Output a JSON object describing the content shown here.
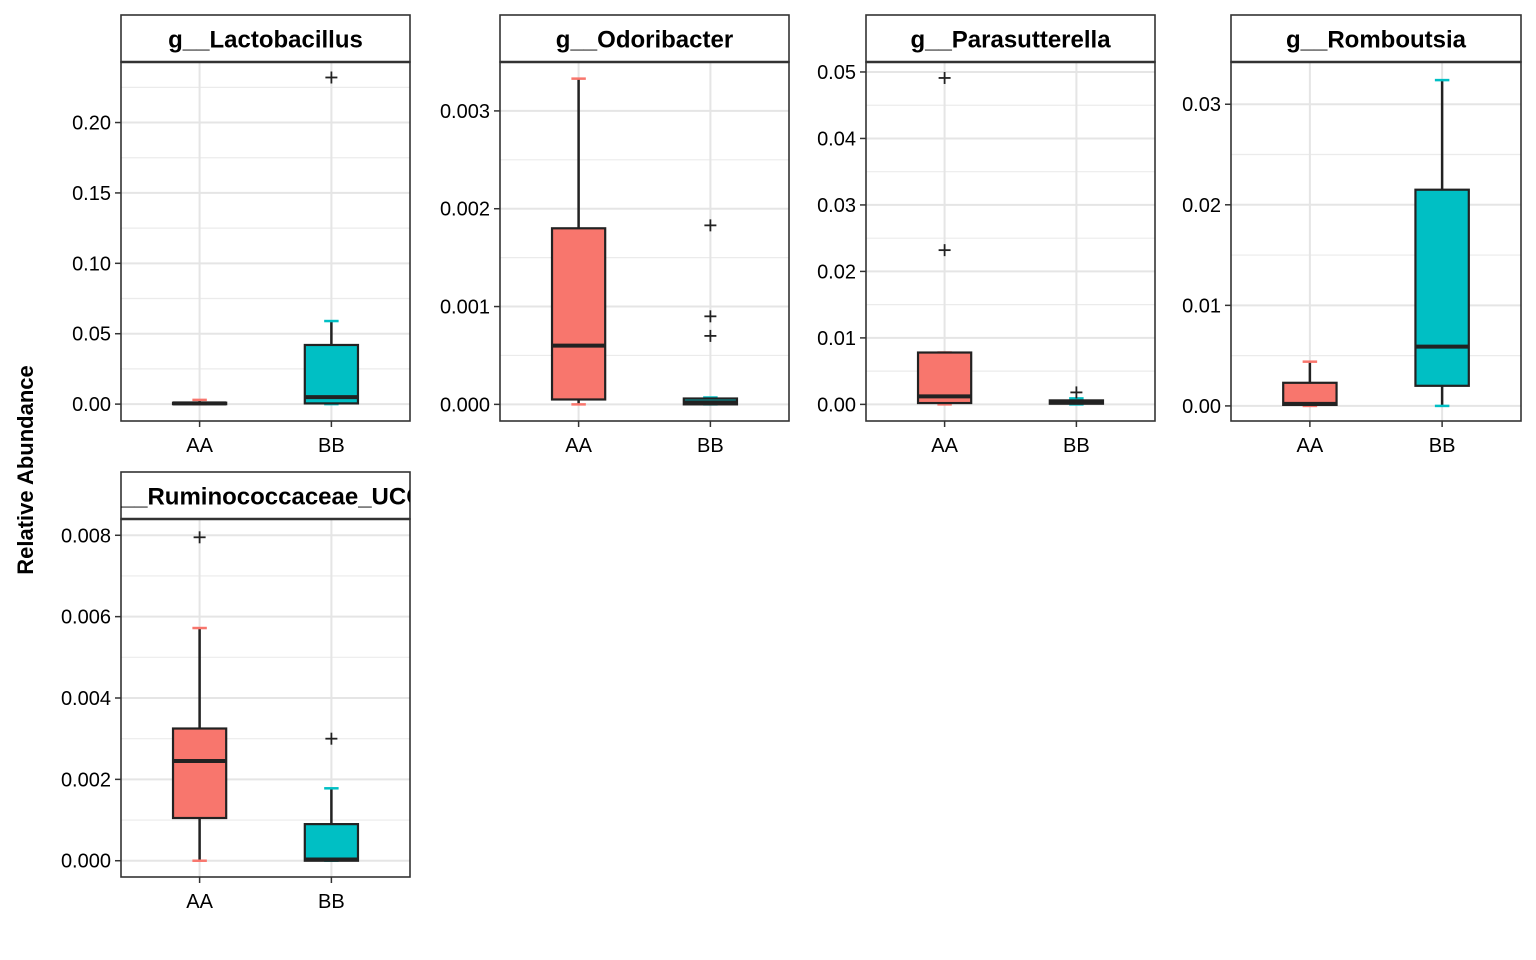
{
  "ylabel": "Relative Abundance",
  "colors": {
    "AA": "#F8766D",
    "BB": "#00BFC4"
  },
  "chart_data": [
    {
      "type": "box",
      "title": "g__Lactobacillus",
      "categories": [
        "AA",
        "BB"
      ],
      "ylim": [
        -0.012,
        0.243
      ],
      "yticks": [
        0.0,
        0.05,
        0.1,
        0.15,
        0.2
      ],
      "ytick_labels": [
        "0.00",
        "0.05",
        "0.10",
        "0.15",
        "0.20"
      ],
      "boxes": [
        {
          "group": "AA",
          "lower_whisker": 0.0,
          "q1": 0.0,
          "median": 0.0005,
          "q3": 0.001,
          "upper_whisker": 0.003,
          "outliers": []
        },
        {
          "group": "BB",
          "lower_whisker": 0.0,
          "q1": 0.0005,
          "median": 0.005,
          "q3": 0.042,
          "upper_whisker": 0.059,
          "outliers": [
            0.232
          ]
        }
      ]
    },
    {
      "type": "box",
      "title": "g__Odoribacter",
      "categories": [
        "AA",
        "BB"
      ],
      "ylim": [
        -0.00017,
        0.0035
      ],
      "yticks": [
        0.0,
        0.001,
        0.002,
        0.003
      ],
      "ytick_labels": [
        "0.000",
        "0.001",
        "0.002",
        "0.003"
      ],
      "boxes": [
        {
          "group": "AA",
          "lower_whisker": 0.0,
          "q1": 5e-05,
          "median": 0.0006,
          "q3": 0.0018,
          "upper_whisker": 0.00333,
          "outliers": []
        },
        {
          "group": "BB",
          "lower_whisker": 0.0,
          "q1": 0.0,
          "median": 2e-05,
          "q3": 6e-05,
          "upper_whisker": 7e-05,
          "outliers": [
            0.00183,
            0.0009,
            0.0007
          ]
        }
      ]
    },
    {
      "type": "box",
      "title": "g__Parasutterella",
      "categories": [
        "AA",
        "BB"
      ],
      "ylim": [
        -0.0025,
        0.0515
      ],
      "yticks": [
        0.0,
        0.01,
        0.02,
        0.03,
        0.04,
        0.05
      ],
      "ytick_labels": [
        "0.00",
        "0.01",
        "0.02",
        "0.03",
        "0.04",
        "0.05"
      ],
      "boxes": [
        {
          "group": "AA",
          "lower_whisker": 0.0,
          "q1": 0.0002,
          "median": 0.0012,
          "q3": 0.0078,
          "upper_whisker": 0.0078,
          "outliers": [
            0.0491,
            0.0232
          ]
        },
        {
          "group": "BB",
          "lower_whisker": 0.0,
          "q1": 0.0001,
          "median": 0.0003,
          "q3": 0.0006,
          "upper_whisker": 0.0009,
          "outliers": [
            0.0018
          ]
        }
      ]
    },
    {
      "type": "box",
      "title": "g__Romboutsia",
      "categories": [
        "AA",
        "BB"
      ],
      "ylim": [
        -0.0015,
        0.0342
      ],
      "yticks": [
        0.0,
        0.01,
        0.02,
        0.03
      ],
      "ytick_labels": [
        "0.00",
        "0.01",
        "0.02",
        "0.03"
      ],
      "boxes": [
        {
          "group": "AA",
          "lower_whisker": 0.0,
          "q1": 0.0001,
          "median": 0.0002,
          "q3": 0.0023,
          "upper_whisker": 0.0044,
          "outliers": []
        },
        {
          "group": "BB",
          "lower_whisker": 0.0,
          "q1": 0.002,
          "median": 0.0059,
          "q3": 0.0215,
          "upper_whisker": 0.0324,
          "outliers": []
        }
      ]
    },
    {
      "type": "box",
      "title": "g__Ruminococcaceae_UCG",
      "categories": [
        "AA",
        "BB"
      ],
      "ylim": [
        -0.0004,
        0.0084
      ],
      "yticks": [
        0.0,
        0.002,
        0.004,
        0.006,
        0.008
      ],
      "ytick_labels": [
        "0.000",
        "0.002",
        "0.004",
        "0.006",
        "0.008"
      ],
      "boxes": [
        {
          "group": "AA",
          "lower_whisker": 0.0,
          "q1": 0.00105,
          "median": 0.00245,
          "q3": 0.00325,
          "upper_whisker": 0.00572,
          "outliers": [
            0.00795
          ]
        },
        {
          "group": "BB",
          "lower_whisker": 0.0,
          "q1": 0.0,
          "median": 3e-05,
          "q3": 0.0009,
          "upper_whisker": 0.00178,
          "outliers": [
            0.003
          ]
        }
      ]
    }
  ]
}
